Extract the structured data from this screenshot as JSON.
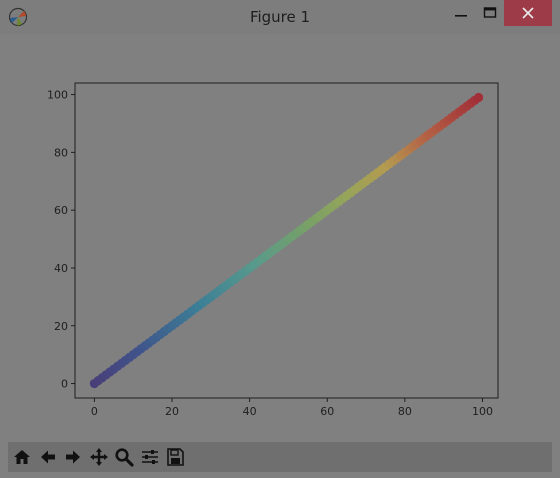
{
  "window": {
    "title": "Figure 1",
    "controls": {
      "minimize": "minimize-icon",
      "maximize": "maximize-icon",
      "close": "close-icon"
    },
    "close_color": "#9e3b48"
  },
  "toolbar": {
    "buttons": [
      {
        "name": "home",
        "icon": "home-icon"
      },
      {
        "name": "back",
        "icon": "arrow-left-icon"
      },
      {
        "name": "forward",
        "icon": "arrow-right-icon"
      },
      {
        "name": "pan",
        "icon": "move-icon"
      },
      {
        "name": "zoom",
        "icon": "magnifier-icon"
      },
      {
        "name": "configure-subplots",
        "icon": "sliders-icon"
      },
      {
        "name": "save",
        "icon": "floppy-disk-icon"
      }
    ]
  },
  "chart_data": {
    "type": "scatter",
    "title": "",
    "xlabel": "",
    "ylabel": "",
    "xlim": [
      -5,
      104
    ],
    "ylim": [
      -5,
      104
    ],
    "x_ticks": [
      "0",
      "20",
      "40",
      "60",
      "80",
      "100"
    ],
    "y_ticks": [
      "0",
      "20",
      "40",
      "60",
      "80",
      "100"
    ],
    "colormap": "Spectral_r",
    "grid": false,
    "legend": "none",
    "series": [
      {
        "x_start": 0,
        "x_end": 99,
        "step": 1,
        "y_equals_x": true,
        "color_by": "x"
      }
    ]
  }
}
